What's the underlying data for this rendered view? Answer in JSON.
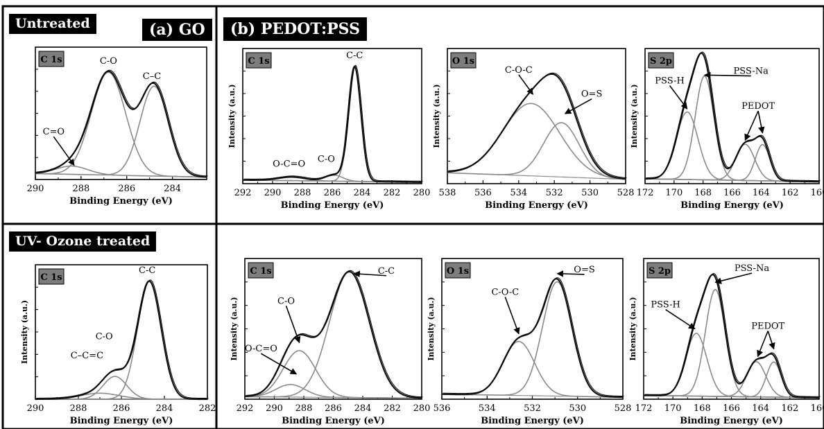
{
  "figure": {
    "untreated_label": "Untreated",
    "uv_label": "UV- Ozone treated",
    "panel_a_label": "(a) GO",
    "panel_b_label": "(b) PEDOT:PSS"
  },
  "colors": {
    "envelope": "#111111",
    "component": "#8a8a8a",
    "frame": "#000000",
    "tag_bg": "#7d7d7d"
  },
  "chart_data": [
    {
      "id": "untreated-go-c1s",
      "type": "line",
      "row": "Untreated",
      "panel": "(a) GO",
      "tag": "C 1s",
      "xlabel": "Binding Energy (eV)",
      "ylabel": "",
      "xlim": [
        290,
        282.5
      ],
      "ylim": [
        0,
        1.12
      ],
      "xticks": [
        290,
        288,
        286,
        284
      ],
      "baseline": 0.05,
      "components": [
        {
          "center": 286.8,
          "height": 0.87,
          "width": 0.75
        },
        {
          "center": 284.8,
          "height": 0.76,
          "width": 0.62
        },
        {
          "center": 288.4,
          "height": 0.07,
          "width": 0.7
        }
      ],
      "annotations": [
        {
          "text": "C-O",
          "x": 286.8,
          "y": 0.98
        },
        {
          "text": "C–C",
          "x": 284.9,
          "y": 0.85
        },
        {
          "text": "C=O",
          "x": 289.2,
          "y": 0.38,
          "arrow_to": [
            288.3,
            0.12
          ]
        }
      ]
    },
    {
      "id": "untreated-pedot-c1s",
      "type": "line",
      "row": "Untreated",
      "panel": "(b) PEDOT:PSS",
      "tag": "C 1s",
      "xlabel": "Binding Energy (eV)",
      "ylabel": "Intensity (a.u.)",
      "xlim": [
        292,
        280
      ],
      "ylim": [
        0,
        1.12
      ],
      "xticks": [
        292,
        290,
        288,
        286,
        284,
        282,
        280
      ],
      "baseline": 0.03,
      "components": [
        {
          "center": 284.5,
          "height": 0.95,
          "width": 0.42
        },
        {
          "center": 285.9,
          "height": 0.05,
          "width": 0.6
        },
        {
          "center": 288.7,
          "height": 0.03,
          "width": 0.9
        }
      ],
      "annotations": [
        {
          "text": "C-C",
          "x": 284.5,
          "y": 1.04
        },
        {
          "text": "C-O",
          "x": 286.4,
          "y": 0.18
        },
        {
          "text": "O-C=O",
          "x": 288.9,
          "y": 0.14
        }
      ]
    },
    {
      "id": "untreated-pedot-o1s",
      "type": "line",
      "row": "Untreated",
      "panel": "(b) PEDOT:PSS",
      "tag": "O 1s",
      "xlabel": "Binding Energy (eV)",
      "ylabel": "Intensity (a.u.)",
      "xlim": [
        538,
        528
      ],
      "ylim": [
        0,
        1.12
      ],
      "xticks": [
        538,
        536,
        534,
        532,
        530,
        528
      ],
      "baseline": 0.09,
      "components": [
        {
          "center": 533.3,
          "height": 0.6,
          "width": 1.6
        },
        {
          "center": 531.6,
          "height": 0.45,
          "width": 1.0
        }
      ],
      "annotations": [
        {
          "text": "C-O-C",
          "x": 534.0,
          "y": 0.92,
          "arrow_to": [
            533.2,
            0.74
          ]
        },
        {
          "text": "O=S",
          "x": 529.9,
          "y": 0.72,
          "arrow_to": [
            531.4,
            0.58
          ]
        }
      ]
    },
    {
      "id": "untreated-pedot-s2p",
      "type": "line",
      "row": "Untreated",
      "panel": "(b) PEDOT:PSS",
      "tag": "S 2p",
      "xlabel": "Binding Energy (eV)",
      "ylabel": "Intensity (a.u.)",
      "xlim": [
        172,
        160
      ],
      "ylim": [
        0,
        1.12
      ],
      "xticks": [
        172,
        170,
        168,
        166,
        164,
        162,
        160
      ],
      "baseline": 0.04,
      "components": [
        {
          "center": 169.1,
          "height": 0.56,
          "width": 0.75
        },
        {
          "center": 167.9,
          "height": 0.86,
          "width": 0.65
        },
        {
          "center": 165.1,
          "height": 0.3,
          "width": 0.65
        },
        {
          "center": 163.9,
          "height": 0.3,
          "width": 0.5
        }
      ],
      "annotations": [
        {
          "text": "PSS-H",
          "x": 170.3,
          "y": 0.83,
          "arrow_to": [
            169.1,
            0.62
          ]
        },
        {
          "text": "PSS-Na",
          "x": 164.7,
          "y": 0.91,
          "arrow_to": [
            167.9,
            0.9
          ]
        },
        {
          "text": "PEDOT",
          "x": 164.2,
          "y": 0.62,
          "arrow_to": [
            165.1,
            0.36
          ],
          "arrow_to_2": [
            163.9,
            0.42
          ]
        }
      ]
    },
    {
      "id": "uv-go-c1s",
      "type": "line",
      "row": "UV- Ozone treated",
      "panel": "(a) GO",
      "tag": "C 1s",
      "xlabel": "Binding Energy (eV)",
      "ylabel": "Intensity (a.u.)",
      "xlim": [
        290,
        282
      ],
      "ylim": [
        0,
        1.12
      ],
      "xticks": [
        290,
        288,
        286,
        284,
        282
      ],
      "baseline": 0.0,
      "components": [
        {
          "center": 284.7,
          "height": 0.98,
          "width": 0.55
        },
        {
          "center": 286.3,
          "height": 0.19,
          "width": 0.55
        },
        {
          "center": 287.0,
          "height": 0.05,
          "width": 0.9
        }
      ],
      "annotations": [
        {
          "text": "C-C",
          "x": 284.8,
          "y": 1.05
        },
        {
          "text": "C-O",
          "x": 286.8,
          "y": 0.5
        },
        {
          "text": "C–C=C",
          "x": 287.6,
          "y": 0.34
        }
      ]
    },
    {
      "id": "uv-pedot-c1s",
      "type": "line",
      "row": "UV- Ozone treated",
      "panel": "(b) PEDOT:PSS",
      "tag": "C 1s",
      "xlabel": "Binding Energy (eV)",
      "ylabel": "Intensity (a.u.)",
      "xlim": [
        292,
        280
      ],
      "ylim": [
        0,
        1.12
      ],
      "xticks": [
        292,
        290,
        288,
        286,
        284,
        282,
        280
      ],
      "baseline": 0.02,
      "components": [
        {
          "center": 284.9,
          "height": 1.0,
          "width": 1.35
        },
        {
          "center": 288.3,
          "height": 0.37,
          "width": 1.1
        },
        {
          "center": 288.9,
          "height": 0.1,
          "width": 1.0
        }
      ],
      "annotations": [
        {
          "text": "C-C",
          "x": 282.4,
          "y": 1.0,
          "arrow_to": [
            284.6,
            1.0
          ]
        },
        {
          "text": "C-O",
          "x": 289.2,
          "y": 0.76,
          "arrow_to": [
            288.3,
            0.45
          ]
        },
        {
          "text": "O-C=O",
          "x": 290.9,
          "y": 0.38,
          "arrow_to": [
            288.5,
            0.2
          ]
        }
      ]
    },
    {
      "id": "uv-pedot-o1s",
      "type": "line",
      "row": "UV- Ozone treated",
      "panel": "(b) PEDOT:PSS",
      "tag": "O 1s",
      "xlabel": "Binding Energy (eV)",
      "ylabel": "Intensity (a.u.)",
      "xlim": [
        536,
        528
      ],
      "ylim": [
        0,
        1.12
      ],
      "xticks": [
        536,
        534,
        532,
        530,
        528
      ],
      "baseline": 0.04,
      "components": [
        {
          "center": 530.9,
          "height": 0.91,
          "width": 0.65
        },
        {
          "center": 532.6,
          "height": 0.43,
          "width": 0.7
        }
      ],
      "annotations": [
        {
          "text": "O=S",
          "x": 529.7,
          "y": 1.01,
          "arrow_to": [
            530.9,
            1.0
          ]
        },
        {
          "text": "C-O-C",
          "x": 533.2,
          "y": 0.83,
          "arrow_to": [
            532.6,
            0.52
          ]
        }
      ]
    },
    {
      "id": "uv-pedot-s2p",
      "type": "line",
      "row": "UV- Ozone treated",
      "panel": "(b) PEDOT:PSS",
      "tag": "S 2p",
      "xlabel": "Binding Energy (eV)",
      "ylabel": "Intensity (a.u.)",
      "xlim": [
        172,
        160
      ],
      "ylim": [
        0,
        1.12
      ],
      "xticks": [
        172,
        170,
        168,
        166,
        164,
        162,
        160
      ],
      "baseline": 0.03,
      "components": [
        {
          "center": 168.4,
          "height": 0.5,
          "width": 0.72
        },
        {
          "center": 167.1,
          "height": 0.85,
          "width": 0.68
        },
        {
          "center": 164.3,
          "height": 0.28,
          "width": 0.65
        },
        {
          "center": 163.1,
          "height": 0.28,
          "width": 0.5
        }
      ],
      "annotations": [
        {
          "text": "PSS-H",
          "x": 170.5,
          "y": 0.73,
          "arrow_to": [
            168.5,
            0.56
          ]
        },
        {
          "text": "PSS-Na",
          "x": 164.6,
          "y": 1.02,
          "arrow_to": [
            167.1,
            0.93
          ]
        },
        {
          "text": "PEDOT",
          "x": 163.5,
          "y": 0.56,
          "arrow_to": [
            164.2,
            0.34
          ],
          "arrow_to_2": [
            163.1,
            0.4
          ]
        }
      ]
    }
  ]
}
